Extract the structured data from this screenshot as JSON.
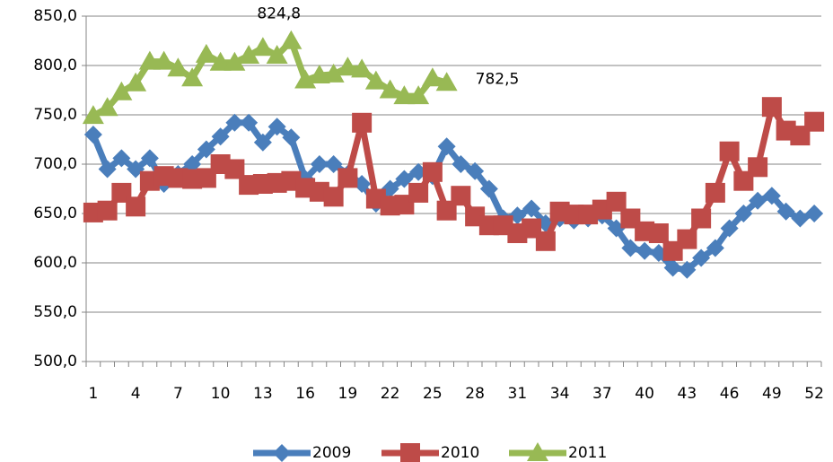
{
  "chart_data": {
    "type": "line",
    "categories": [
      "1",
      null,
      null,
      "4",
      null,
      null,
      "7",
      null,
      null,
      "10",
      null,
      null,
      "13",
      null,
      null,
      "16",
      null,
      null,
      "19",
      null,
      null,
      "22",
      null,
      null,
      "25",
      null,
      null,
      "28",
      null,
      null,
      "31",
      null,
      null,
      "34",
      null,
      null,
      "37",
      null,
      null,
      "40",
      null,
      null,
      "43",
      null,
      null,
      "46",
      null,
      null,
      "49",
      null,
      null,
      "52"
    ],
    "ylim": [
      500,
      850
    ],
    "yticks": [
      {
        "value": 500,
        "label": "500,0"
      },
      {
        "value": 550,
        "label": "550,0"
      },
      {
        "value": 600,
        "label": "600,0"
      },
      {
        "value": 650,
        "label": "650,0"
      },
      {
        "value": 700,
        "label": "700,0"
      },
      {
        "value": 750,
        "label": "750,0"
      },
      {
        "value": 800,
        "label": "800,0"
      },
      {
        "value": 850,
        "label": "850,0"
      }
    ],
    "grid": true,
    "legend": "bottom",
    "series": [
      {
        "name": "2009",
        "color": "#4a7ebb",
        "marker": "diamond",
        "values": [
          730,
          695,
          706,
          695,
          706,
          680,
          690,
          700,
          715,
          728,
          742,
          742,
          722,
          738,
          727,
          685,
          700,
          700,
          690,
          680,
          660,
          675,
          685,
          692,
          688,
          718,
          700,
          693,
          675,
          645,
          648,
          655,
          640,
          645,
          643,
          645,
          648,
          635,
          615,
          612,
          610,
          595,
          593,
          605,
          615,
          635,
          650,
          663,
          668,
          652,
          645,
          650
        ]
      },
      {
        "name": "2010",
        "color": "#be4b48",
        "marker": "square",
        "values": [
          651,
          653,
          671,
          657,
          683,
          688,
          686,
          685,
          686,
          700,
          695,
          679,
          680,
          681,
          683,
          676,
          672,
          667,
          686,
          742,
          665,
          658,
          659,
          671,
          692,
          653,
          668,
          647,
          638,
          638,
          630,
          635,
          622,
          652,
          649,
          649,
          654,
          662,
          645,
          632,
          630,
          612,
          624,
          645,
          671,
          713,
          683,
          697,
          758,
          734,
          729,
          743
        ]
      },
      {
        "name": "2011",
        "color": "#98b954",
        "marker": "triangle",
        "values": [
          749,
          757,
          773,
          782,
          804,
          804,
          797,
          787,
          811,
          803,
          803,
          810,
          818,
          810,
          824.8,
          785,
          790,
          791,
          798,
          796,
          784,
          775,
          769,
          769,
          787,
          782.5,
          null,
          null,
          null,
          null,
          null,
          null,
          null,
          null,
          null,
          null,
          null,
          null,
          null,
          null,
          null,
          null,
          null,
          null,
          null,
          null,
          null,
          null,
          null,
          null,
          null,
          null
        ],
        "value_labels": [
          null,
          null,
          null,
          null,
          null,
          null,
          null,
          null,
          null,
          null,
          null,
          null,
          null,
          null,
          "824,8",
          null,
          null,
          null,
          null,
          null,
          null,
          null,
          null,
          null,
          null,
          "782,5",
          null,
          null,
          null,
          null,
          null,
          null,
          null,
          null,
          null,
          null,
          null,
          null,
          null,
          null,
          null,
          null,
          null,
          null,
          null,
          null,
          null,
          null,
          null,
          null,
          null,
          null
        ]
      }
    ]
  }
}
